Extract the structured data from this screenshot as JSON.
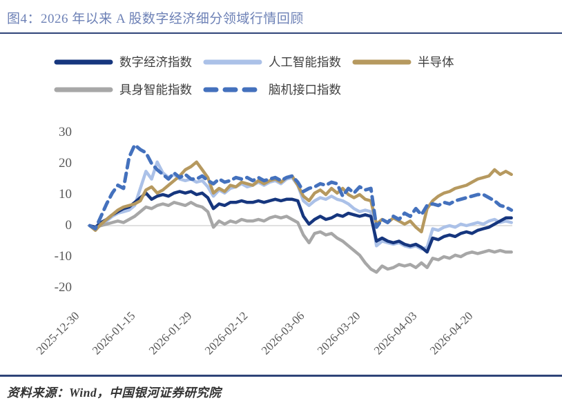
{
  "header": {
    "title": "图4：2026 年以来 A 股数字经济细分领域行情回顾"
  },
  "footer": {
    "source": "资料来源：Wind，中国银河证券研究院"
  },
  "colors": {
    "title_text": "#6d81b6",
    "rule": "#2e4378",
    "axis_text": "#595959",
    "legend_text": "#404040",
    "source_text": "#333333",
    "zero_line": "#d6d6d6"
  },
  "chart_data": {
    "type": "line",
    "title": "2026 年以来 A 股数字经济细分领域行情回顾",
    "xlabel": "",
    "ylabel": "",
    "ylim": [
      -20,
      30
    ],
    "y_ticks": [
      30,
      20,
      10,
      0,
      -10,
      -20
    ],
    "grid": "zero-baseline-only",
    "legend_position": "top-left",
    "x_unit": "trading days since 2025-12-30",
    "x_tick_labels": [
      "2025-12-30",
      "2026-01-15",
      "2026-01-29",
      "2026-02-12",
      "2026-03-06",
      "2026-03-20",
      "2026-04-03",
      "2026-04-20"
    ],
    "x_tick_indices": [
      0,
      10,
      20,
      30,
      40,
      50,
      60,
      70
    ],
    "draw_order": [
      "ai-index",
      "embodied-ai-index",
      "digital-economy-index",
      "semiconductor",
      "bci-index"
    ],
    "series": [
      {
        "key": "digital-economy-index",
        "name": "数字经济指数",
        "color": "#16367e",
        "dashed": false,
        "values": [
          0,
          -0.5,
          1,
          2,
          3.5,
          4.5,
          5.5,
          6,
          7.5,
          9,
          10.5,
          8.5,
          9.5,
          10,
          9.5,
          10.5,
          11,
          10.5,
          11,
          10,
          10.5,
          9,
          5.5,
          7,
          6.5,
          7.5,
          7.5,
          8,
          7.5,
          7.5,
          8,
          7.5,
          8,
          8.5,
          8,
          8.5,
          8.5,
          8,
          3,
          0.5,
          2,
          3,
          2,
          2.5,
          3.5,
          3,
          4,
          3.5,
          3,
          3.5,
          3,
          -5,
          -4,
          -5,
          -5.5,
          -5,
          -6,
          -6.5,
          -6,
          -7,
          -8.5,
          -4,
          -4.5,
          -3.5,
          -3,
          -3.5,
          -2.5,
          -2,
          -2.5,
          -1.5,
          -1,
          -0.5,
          0.5,
          1.5,
          2.5,
          2.5
        ]
      },
      {
        "key": "ai-index",
        "name": "人工智能指数",
        "color": "#abc1e8",
        "dashed": false,
        "values": [
          0,
          -0.5,
          0.5,
          1.5,
          3,
          4,
          4.5,
          5,
          6.5,
          12,
          17.5,
          15,
          20.5,
          17,
          15.5,
          16.5,
          15,
          14.5,
          15,
          14,
          14.5,
          12.5,
          9.5,
          11.5,
          10.5,
          12,
          12.5,
          13.5,
          12.5,
          13,
          14,
          13,
          14,
          14.5,
          13.5,
          15,
          15.5,
          13,
          8,
          6.5,
          8,
          9,
          8.5,
          9.5,
          8.5,
          8,
          7,
          5.5,
          4.5,
          5,
          4.5,
          -6.5,
          -5,
          -5.5,
          -6,
          -5.5,
          -6.5,
          -7,
          -6.5,
          -7.5,
          -7,
          -1,
          -1.5,
          -0.5,
          0,
          -0.5,
          0.5,
          0,
          0.5,
          1,
          0.5,
          1.5,
          2,
          1,
          1.5,
          1
        ]
      },
      {
        "key": "semiconductor",
        "name": "半导体",
        "color": "#b6995f",
        "dashed": false,
        "values": [
          0,
          -1.5,
          0.5,
          2,
          3.5,
          5,
          6,
          6.5,
          7,
          8,
          11.5,
          12.5,
          10.5,
          11.5,
          13,
          14.5,
          16,
          18,
          19,
          20.5,
          18,
          15.5,
          10.5,
          12,
          11,
          13,
          12.5,
          14,
          13.5,
          13,
          14.5,
          13.5,
          14.5,
          15,
          14,
          15.5,
          16,
          13,
          9.5,
          8,
          10.5,
          11.5,
          10,
          12,
          10.5,
          12,
          10,
          9,
          10,
          8.5,
          8,
          0.5,
          2,
          1,
          2.5,
          1.5,
          0.5,
          1.5,
          -0.5,
          -2,
          5.5,
          8,
          9.5,
          10.5,
          11,
          12,
          12.5,
          13,
          14,
          15,
          15.5,
          16,
          18,
          16.5,
          17.5,
          16.5
        ]
      },
      {
        "key": "embodied-ai-index",
        "name": "具身智能指数",
        "color": "#a7a7a7",
        "dashed": false,
        "values": [
          0,
          -0.5,
          0,
          0.5,
          1,
          1.5,
          1,
          2,
          3,
          4.5,
          6,
          5.5,
          6.5,
          7,
          6.5,
          7.5,
          7,
          6.5,
          7.5,
          6.5,
          6,
          4.5,
          -0.5,
          1.5,
          0.5,
          1.5,
          1,
          2,
          1.5,
          1.5,
          2,
          1.5,
          2.5,
          3,
          2.5,
          3,
          2,
          1,
          -3,
          -5.5,
          -2.5,
          -2,
          -3,
          -2.5,
          -4,
          -5,
          -6.5,
          -8,
          -9.5,
          -12,
          -14,
          -15,
          -13,
          -14,
          -13.5,
          -12.5,
          -13,
          -12.5,
          -13.5,
          -12,
          -13.5,
          -10.5,
          -11,
          -10,
          -10.5,
          -9.5,
          -10,
          -9,
          -8.5,
          -9,
          -8.5,
          -8,
          -8.5,
          -8,
          -8.5,
          -8.5
        ]
      },
      {
        "key": "bci-index",
        "name": "脑机接口指数",
        "color": "#4471bd",
        "dashed": true,
        "values": [
          0,
          -1,
          3,
          7,
          10.5,
          13,
          12,
          22,
          26,
          24.5,
          23.5,
          20,
          18,
          16.5,
          15,
          17,
          15.5,
          16.5,
          15,
          15,
          16,
          14.5,
          13.5,
          15,
          14,
          14.5,
          15.5,
          15,
          15.5,
          14.5,
          15.5,
          14.5,
          15,
          15.5,
          14.5,
          15.5,
          16,
          14,
          11,
          12,
          12.5,
          13.5,
          13,
          14,
          13.5,
          9.5,
          12,
          10.5,
          12.5,
          11.5,
          12,
          -0.5,
          2,
          1,
          3,
          2,
          4,
          3,
          5.5,
          3.5,
          6.5,
          7,
          6.5,
          7.5,
          7,
          8,
          8.5,
          9,
          9.5,
          10,
          10,
          9,
          8,
          6.5,
          6,
          5
        ]
      }
    ]
  }
}
